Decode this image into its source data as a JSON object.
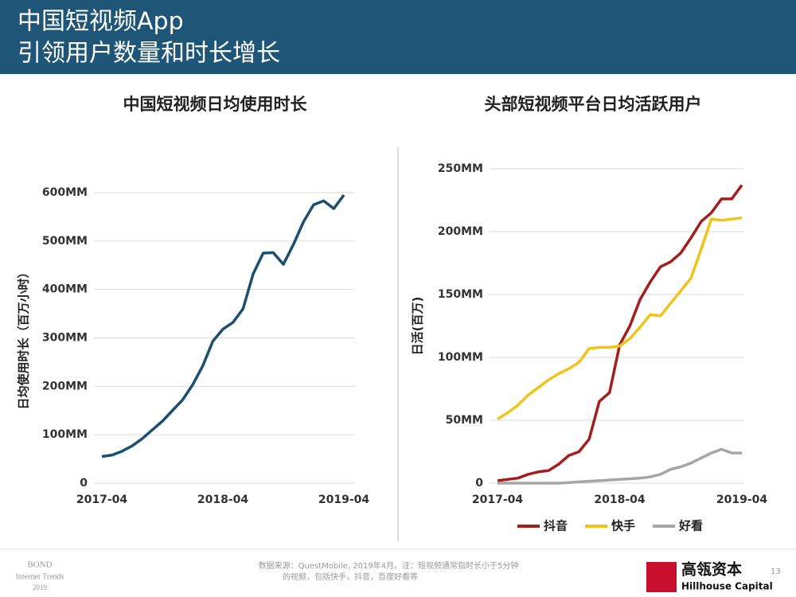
{
  "header": {
    "title_line1": "中国短视频App",
    "title_line2": "引领用户数量和时长增长"
  },
  "chart_data": [
    {
      "type": "line",
      "title": "中国短视频日均使用时长",
      "y_label": "日均使用时长（百万小时）",
      "categories": [
        "2017-04",
        null,
        null,
        null,
        null,
        null,
        null,
        null,
        null,
        null,
        null,
        null,
        "2018-04",
        null,
        null,
        null,
        null,
        null,
        null,
        null,
        null,
        null,
        null,
        null,
        "2019-04"
      ],
      "series": [
        {
          "name": null,
          "color": "#1d4f6e",
          "values": [
            55,
            58,
            66,
            77,
            92,
            110,
            128,
            150,
            172,
            203,
            242,
            293,
            318,
            332,
            360,
            432,
            475,
            476,
            452,
            493,
            540,
            575,
            583,
            567,
            595
          ]
        }
      ],
      "ylim": [
        0,
        600
      ],
      "yticks": [
        0,
        {
          "value": 100,
          "label": "100MM"
        },
        {
          "value": 200,
          "label": "200MM"
        },
        {
          "value": 300,
          "label": "300MM"
        },
        {
          "value": 400,
          "label": "400MM"
        },
        {
          "value": 500,
          "label": "500MM"
        },
        {
          "value": 600,
          "label": "600MM"
        }
      ],
      "grid": true,
      "legend": false
    },
    {
      "type": "line",
      "title": "头部短视频平台日均活跃用户",
      "y_label": "日活(百万)",
      "categories": [
        "2017-04",
        null,
        null,
        null,
        null,
        null,
        null,
        null,
        null,
        null,
        null,
        null,
        "2018-04",
        null,
        null,
        null,
        null,
        null,
        null,
        null,
        null,
        null,
        null,
        null,
        "2019-04"
      ],
      "series": [
        {
          "name": "抖音",
          "color": "#a51e1e",
          "values": [
            2,
            3,
            4,
            7,
            9,
            10,
            15,
            22,
            25,
            35,
            65,
            72,
            110,
            125,
            146,
            160,
            172,
            176,
            183,
            195,
            208,
            215,
            226,
            226,
            237
          ]
        },
        {
          "name": "快手",
          "color": "#f0c419",
          "values": [
            51,
            56,
            62,
            70,
            76,
            82,
            87,
            91,
            96,
            107,
            108,
            108,
            109,
            115,
            124,
            134,
            133,
            143,
            153,
            163,
            186,
            210,
            209,
            210,
            211
          ]
        },
        {
          "name": "好看",
          "color": "#a6a6a6",
          "values": [
            0,
            0,
            0,
            0,
            0,
            0,
            0,
            0.5,
            1,
            1.5,
            2,
            2.5,
            3,
            3.5,
            4,
            5,
            7,
            11,
            13,
            16,
            20,
            24,
            27,
            24,
            24
          ]
        }
      ],
      "ylim": [
        0,
        250
      ],
      "yticks": [
        0,
        {
          "value": 50,
          "label": "50MM"
        },
        {
          "value": 100,
          "label": "100MM"
        },
        {
          "value": 150,
          "label": "150MM"
        },
        {
          "value": 200,
          "label": "200MM"
        },
        {
          "value": 250,
          "label": "250MM"
        }
      ],
      "grid": true,
      "legend": "bottom"
    }
  ],
  "footer": {
    "brand_1": "BOND",
    "brand_2": "Internet Trends",
    "brand_3": "2019",
    "source_1": "数据来源：QuestMobile, 2019年4月。注：短视频通常指时长小于5分钟",
    "source_2": "的视频，包括快手，抖音，百度好看等",
    "logo_cn": "高瓴资本",
    "logo_en": "Hillhouse Capital",
    "page": "13"
  }
}
